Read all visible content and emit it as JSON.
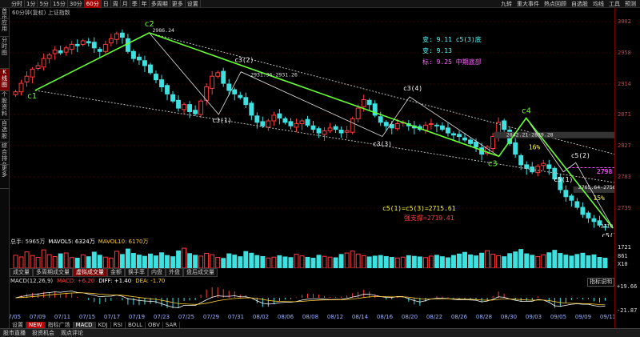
{
  "topbar": {
    "tabs": [
      "分时",
      "1分",
      "5分",
      "15分",
      "30分",
      "60分",
      "日",
      "周",
      "月",
      "季",
      "年",
      "多周期",
      "更多",
      "设置"
    ],
    "active_tab": "60分",
    "right_tools": [
      "九转",
      "重大事件",
      "热点回顾",
      "自选股",
      "均线",
      "工具",
      "预测"
    ]
  },
  "left_tabs": [
    "首页",
    "应用",
    "分时图",
    "K线图",
    "个股资料",
    "自选股",
    "综合排名",
    "更多"
  ],
  "subtitle": "60分钟(复权)  上证指数",
  "price_axis": [
    3002,
    2958,
    2914,
    2871,
    2827,
    2783,
    2739
  ],
  "colors": {
    "up": "#ff3b3b",
    "down": "#3fe0e0",
    "trend": "#66ff33",
    "zig": "#e0e0e0",
    "axis": "#7a0000",
    "grid": "#3a0000",
    "yellow": "#ffff33",
    "magenta": "#ff44ff"
  },
  "chart_data": {
    "type": "candlestick",
    "title": "",
    "x_dates": [
      "07/05",
      "07/09",
      "07/11",
      "07/15",
      "07/17",
      "07/19",
      "07/23",
      "07/25",
      "07/29",
      "07/31",
      "08/02",
      "08/06",
      "08/08",
      "08/12",
      "08/14",
      "08/16",
      "08/20",
      "08/22",
      "08/26",
      "08/28",
      "08/30",
      "09/03",
      "09/05",
      "09/09",
      "09/11"
    ],
    "ylim": [
      2705,
      3010
    ],
    "pivots": [
      {
        "label": "c1",
        "date_index": 0.9,
        "price": 2905
      },
      {
        "label": "c2",
        "date_index": 5.5,
        "price": 2986.24
      },
      {
        "label": "c3(1)",
        "date_index": 8.3,
        "price": 2871
      },
      {
        "label": "c3(2)",
        "date_index": 9.2,
        "price": 2931.26
      },
      {
        "label": "c3(3)",
        "date_index": 14.9,
        "price": 2840
      },
      {
        "label": "c3(4)",
        "date_index": 16.0,
        "price": 2896
      },
      {
        "label": "c3",
        "date_index": 19.6,
        "price": 2812
      },
      {
        "label": "c4",
        "date_index": 20.7,
        "price": 2866
      },
      {
        "label": "c5(1)",
        "date_index": 22.2,
        "price": 2790
      },
      {
        "label": "c5(2)",
        "date_index": 22.7,
        "price": 2803
      },
      {
        "label": "c5(3)",
        "date_index": 24.2,
        "price": 2710.62
      }
    ],
    "price_labels": [
      "2986.24",
      "2931.96-2931.26",
      "2842.21-2839.28",
      "2765.64-2756.56",
      "2710.62"
    ],
    "pct_labels": [
      "16%",
      "15%"
    ],
    "series_close": [
      2903,
      2915,
      2925,
      2935,
      2940,
      2950,
      2955,
      2962,
      2958,
      2965,
      2970,
      2968,
      2975,
      2972,
      2965,
      2960,
      2970,
      2978,
      2985,
      2980,
      2960,
      2950,
      2948,
      2940,
      2930,
      2920,
      2910,
      2900,
      2890,
      2880,
      2885,
      2875,
      2872,
      2890,
      2910,
      2925,
      2930,
      2915,
      2905,
      2900,
      2895,
      2885,
      2870,
      2860,
      2855,
      2862,
      2870,
      2866,
      2860,
      2855,
      2858,
      2862,
      2856,
      2850,
      2845,
      2848,
      2852,
      2850,
      2845,
      2848,
      2865,
      2880,
      2892,
      2885,
      2870,
      2860,
      2855,
      2852,
      2858,
      2860,
      2855,
      2852,
      2850,
      2856,
      2858,
      2855,
      2850,
      2845,
      2842,
      2840,
      2835,
      2830,
      2825,
      2815,
      2825,
      2840,
      2860,
      2850,
      2830,
      2815,
      2800,
      2795,
      2790,
      2798,
      2802,
      2795,
      2780,
      2765,
      2755,
      2750,
      2740,
      2730,
      2725,
      2720,
      2715,
      2712
    ]
  },
  "annotations": {
    "green_box": [
      "变: 9.11 c5(3)底",
      "变: 9.13",
      "标: 9.25 中期底部"
    ],
    "formula": "c5(1)=c5(3)=2715.61",
    "support": "强支撑=2719.41",
    "level_2798": "2798"
  },
  "volume": {
    "header": {
      "total": "总手: 5965万",
      "ma5": "MAVOL5: 6324万",
      "ma10": "MAVOL10: 6170万"
    },
    "axis": [
      "1721",
      "861",
      "X10"
    ],
    "tabs": [
      "成交量",
      "多周期成交量",
      "虚拟成交量",
      "金额",
      "换手率",
      "内盘",
      "外盘",
      "盘后成交量"
    ],
    "active_tab": "虚拟成交量",
    "values": [
      6200,
      5400,
      7800,
      6100,
      5200,
      8800,
      6500,
      5600,
      6900,
      7300,
      5100,
      4800,
      6400,
      5500,
      7700,
      6200,
      5300,
      4900,
      8100,
      6600,
      9200,
      7100,
      6300,
      5700,
      6800,
      5900,
      7400,
      6100,
      5500,
      8300,
      9600,
      7000,
      6200,
      5800,
      7100,
      6500,
      5200,
      4700,
      6900,
      6300,
      5500,
      8000,
      7200,
      6100,
      5600,
      4900,
      5300,
      6000,
      5400,
      5100,
      6700,
      5900,
      5200,
      4800,
      6200,
      5700,
      5300,
      5000,
      6600,
      7300,
      8200,
      6800,
      6000,
      5400,
      5800,
      6100,
      5600,
      5200,
      4900,
      5300,
      6000,
      5700,
      5400,
      5100,
      5800,
      6200,
      5500,
      5000,
      6100,
      6800,
      7600,
      6400,
      5900,
      7200,
      8400,
      6700,
      6000,
      5500,
      7000,
      7800,
      9000,
      6900,
      6200,
      5600,
      6400,
      7400,
      8600,
      7100,
      6300,
      5800,
      6600,
      7200,
      5965,
      6400,
      5200,
      4800
    ]
  },
  "macd": {
    "header": {
      "name": "MACD(12,26,9)",
      "macd": "MACD: +6.20",
      "diff": "DIFF: +1.40",
      "dea": "DEA: -1.70"
    },
    "button": "指标说明",
    "axis": [
      "+19.66",
      "-21.87"
    ],
    "tabs": [
      "设置",
      "NEW",
      "指标广场",
      "MACD",
      "KDJ",
      "RSI",
      "BOLL",
      "OBV",
      "SAR"
    ],
    "active_tab": "MACD"
  },
  "statusbar": [
    "股市直播",
    "投资机会",
    "观点评论"
  ]
}
